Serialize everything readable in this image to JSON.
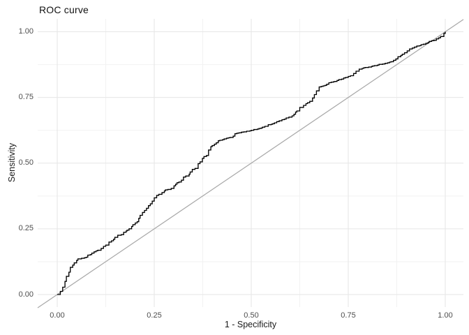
{
  "page": {
    "background": "#ffffff"
  },
  "title": "ROC curve",
  "chart_data": {
    "type": "line",
    "title": "ROC curve",
    "xlabel": "1 - Specificity",
    "ylabel": "Sensitivity",
    "xlim": [
      0,
      1
    ],
    "ylim": [
      0,
      1
    ],
    "grid": "on",
    "legend": "none",
    "x_ticks": {
      "values": [
        0,
        0.25,
        0.5,
        0.75,
        1
      ],
      "labels": [
        "0.00",
        "0.25",
        "0.50",
        "0.75",
        "1.00"
      ]
    },
    "y_ticks": {
      "values": [
        0,
        0.25,
        0.5,
        0.75,
        1
      ],
      "labels": [
        "0.00",
        "0.25",
        "0.50",
        "0.75",
        "1.00"
      ]
    },
    "minor_ticks": [
      0.125,
      0.375,
      0.625,
      0.875
    ],
    "colors": {
      "grid_major": "#e6e6e6",
      "grid_minor": "#f2f2f2",
      "tick_label": "#4d4d4d",
      "axis_title": "#1a1a1a",
      "title": "#111111",
      "roc_line": "#000000",
      "diagonal_line": "#a8a8a8"
    },
    "series": [
      {
        "name": "ROC curve",
        "style": "empirical-staircase",
        "color": "#000000",
        "points": [
          [
            0.0,
            0.0
          ],
          [
            0.008,
            0.012
          ],
          [
            0.014,
            0.028
          ],
          [
            0.02,
            0.05
          ],
          [
            0.03,
            0.085
          ],
          [
            0.04,
            0.112
          ],
          [
            0.05,
            0.13
          ],
          [
            0.07,
            0.14
          ],
          [
            0.085,
            0.152
          ],
          [
            0.1,
            0.166
          ],
          [
            0.125,
            0.188
          ],
          [
            0.145,
            0.21
          ],
          [
            0.165,
            0.228
          ],
          [
            0.18,
            0.245
          ],
          [
            0.195,
            0.266
          ],
          [
            0.21,
            0.29
          ],
          [
            0.225,
            0.32
          ],
          [
            0.24,
            0.345
          ],
          [
            0.25,
            0.368
          ],
          [
            0.27,
            0.388
          ],
          [
            0.285,
            0.4
          ],
          [
            0.305,
            0.42
          ],
          [
            0.32,
            0.435
          ],
          [
            0.34,
            0.458
          ],
          [
            0.355,
            0.48
          ],
          [
            0.368,
            0.505
          ],
          [
            0.378,
            0.525
          ],
          [
            0.39,
            0.55
          ],
          [
            0.405,
            0.572
          ],
          [
            0.415,
            0.585
          ],
          [
            0.43,
            0.592
          ],
          [
            0.445,
            0.598
          ],
          [
            0.458,
            0.612
          ],
          [
            0.475,
            0.618
          ],
          [
            0.5,
            0.625
          ],
          [
            0.52,
            0.632
          ],
          [
            0.535,
            0.64
          ],
          [
            0.555,
            0.65
          ],
          [
            0.572,
            0.661
          ],
          [
            0.59,
            0.672
          ],
          [
            0.61,
            0.686
          ],
          [
            0.625,
            0.712
          ],
          [
            0.645,
            0.73
          ],
          [
            0.658,
            0.748
          ],
          [
            0.668,
            0.775
          ],
          [
            0.675,
            0.79
          ],
          [
            0.69,
            0.796
          ],
          [
            0.7,
            0.806
          ],
          [
            0.716,
            0.811
          ],
          [
            0.733,
            0.82
          ],
          [
            0.75,
            0.83
          ],
          [
            0.77,
            0.85
          ],
          [
            0.79,
            0.863
          ],
          [
            0.81,
            0.868
          ],
          [
            0.825,
            0.873
          ],
          [
            0.845,
            0.88
          ],
          [
            0.86,
            0.886
          ],
          [
            0.878,
            0.905
          ],
          [
            0.895,
            0.92
          ],
          [
            0.915,
            0.938
          ],
          [
            0.933,
            0.947
          ],
          [
            0.95,
            0.956
          ],
          [
            0.965,
            0.966
          ],
          [
            0.977,
            0.973
          ],
          [
            0.988,
            0.982
          ],
          [
            1.0,
            1.0
          ]
        ]
      },
      {
        "name": "chance diagonal",
        "style": "reference-line",
        "color": "#a8a8a8",
        "points": [
          [
            0,
            0
          ],
          [
            1,
            1
          ]
        ]
      }
    ]
  }
}
